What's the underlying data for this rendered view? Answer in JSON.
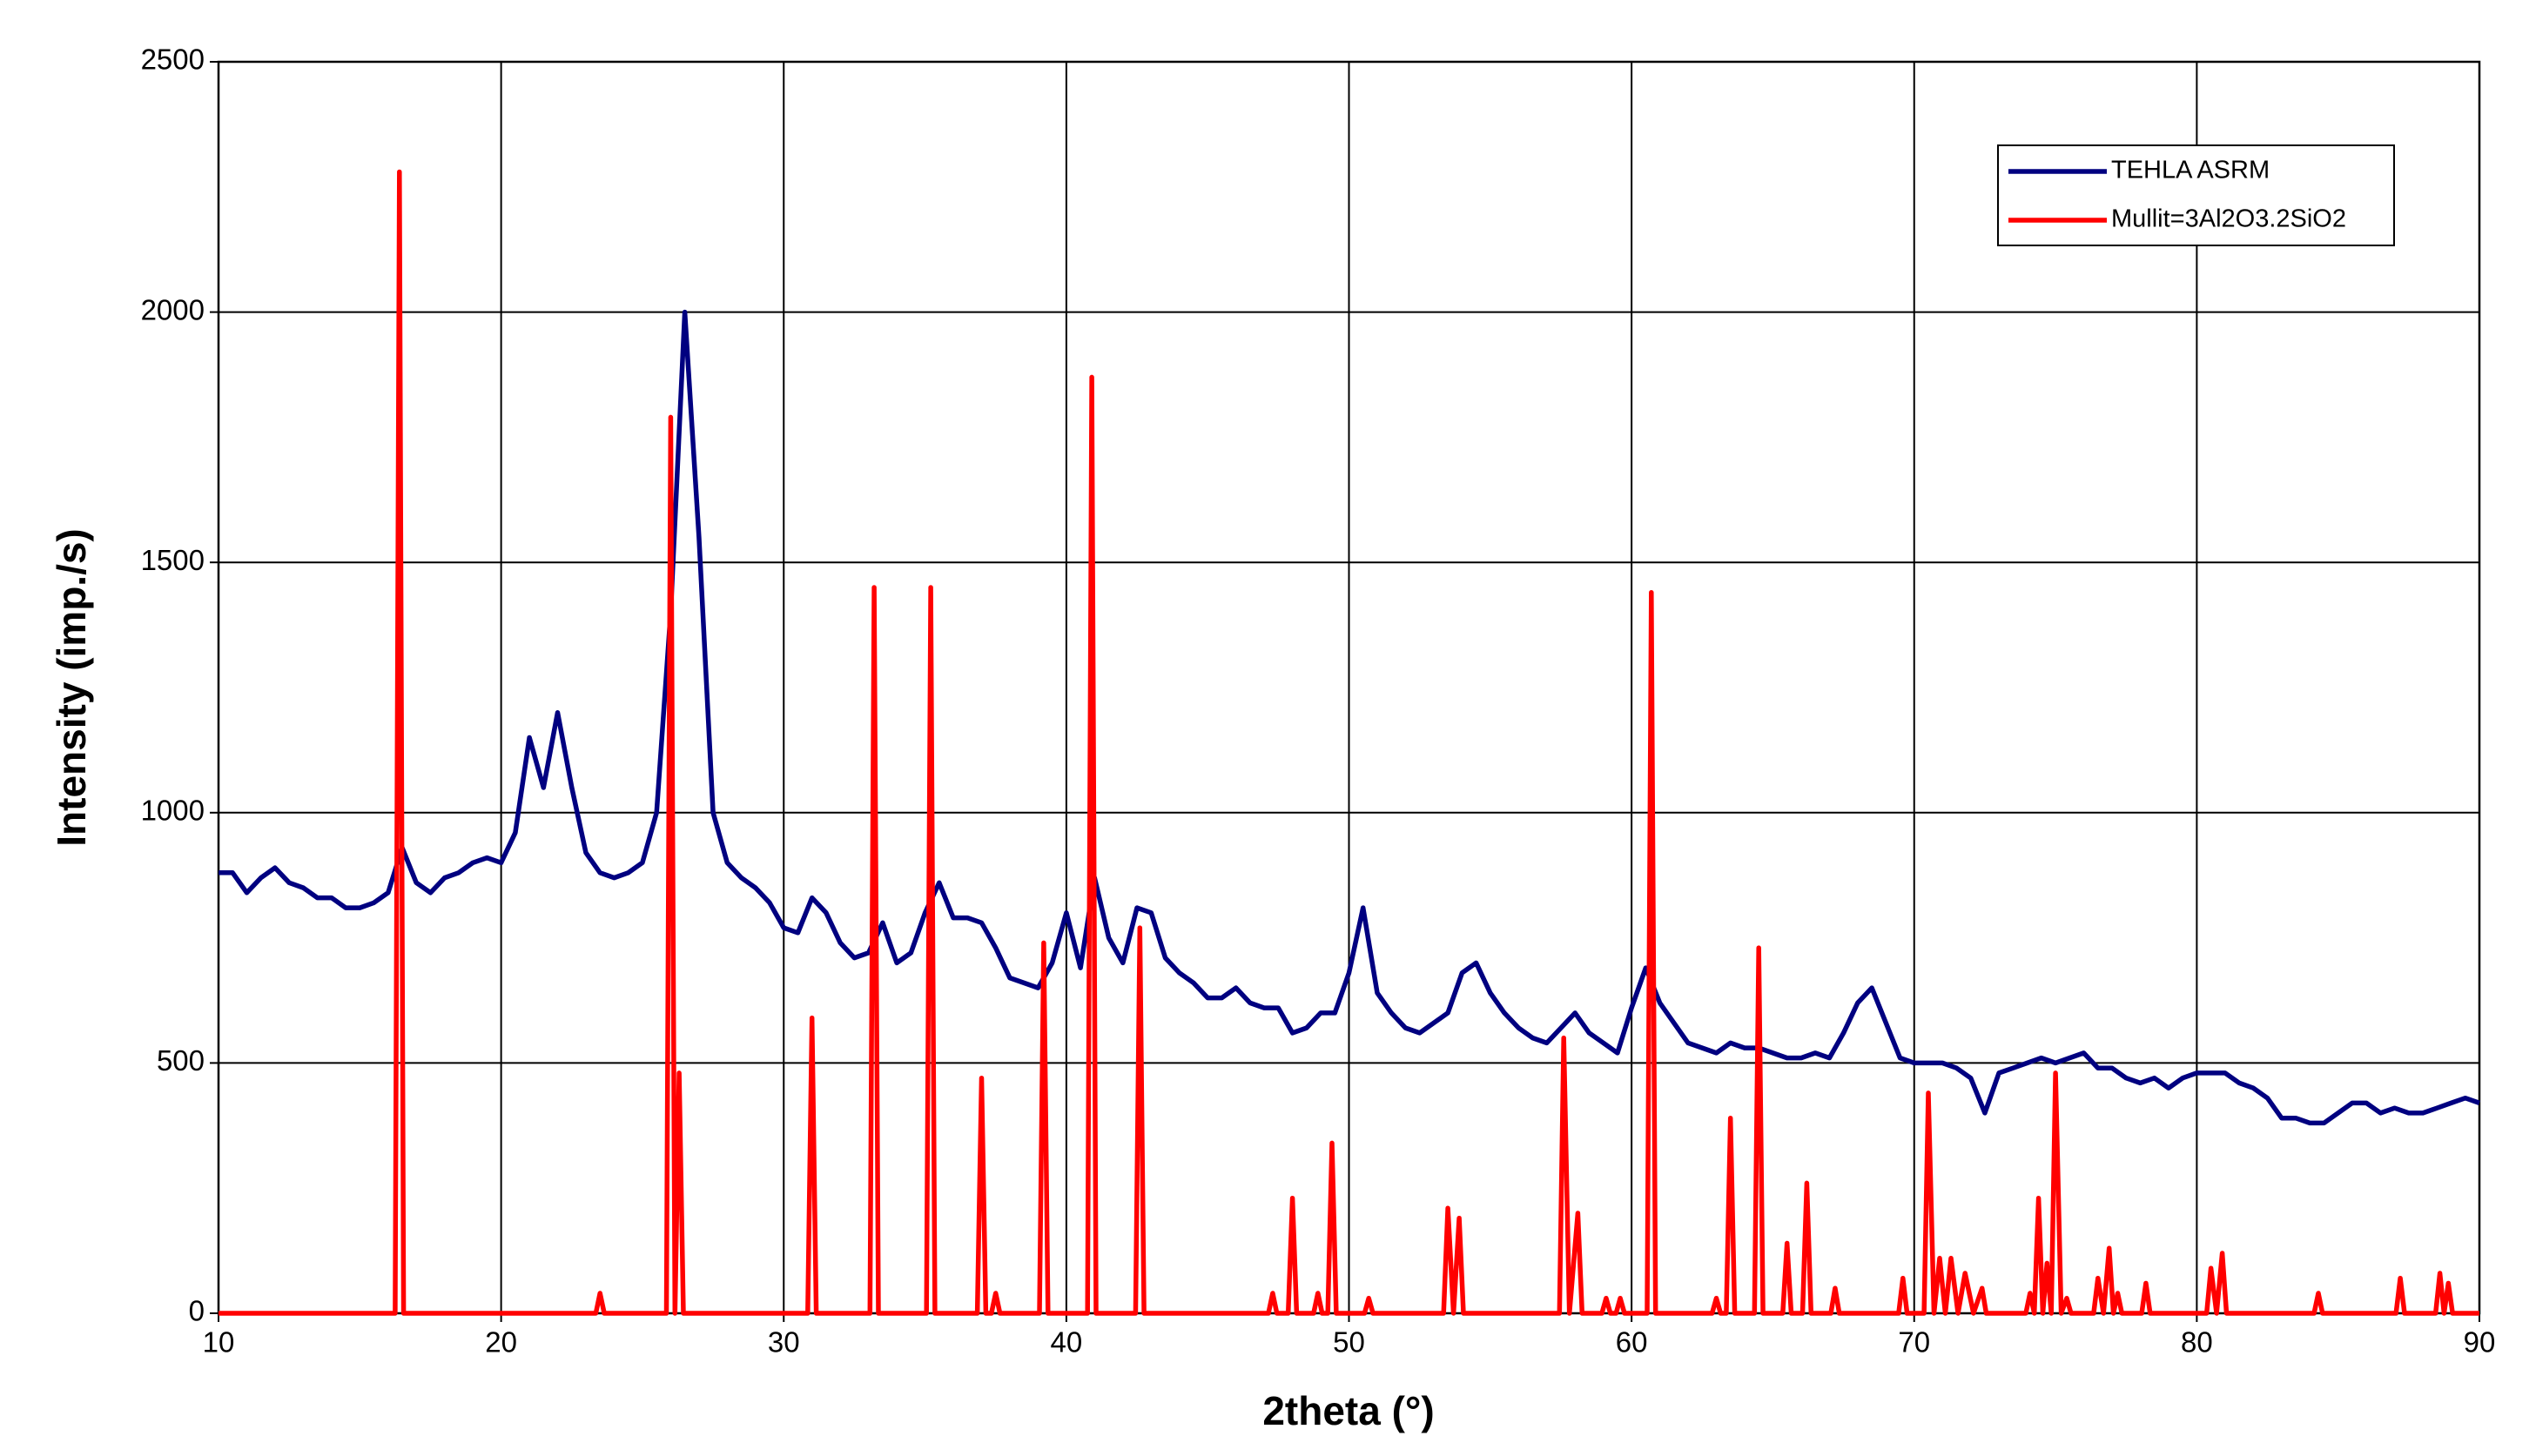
{
  "chart_data": {
    "type": "line",
    "xlabel": "2theta (°)",
    "ylabel": "Intensity (imp./s)",
    "xlim": [
      10,
      90
    ],
    "ylim": [
      0,
      2500
    ],
    "xticks": [
      10,
      20,
      30,
      40,
      50,
      60,
      70,
      80,
      90
    ],
    "yticks": [
      0,
      500,
      1000,
      1500,
      2000,
      2500
    ],
    "grid": true,
    "legend": "top-right",
    "series": [
      {
        "name": "TEHLA ASRM",
        "color": "#000080",
        "x": [
          10,
          10.5,
          11,
          11.5,
          12,
          12.5,
          13,
          13.5,
          14,
          14.5,
          15,
          15.5,
          16,
          16.5,
          17,
          17.5,
          18,
          18.5,
          19,
          19.5,
          20,
          20.5,
          21,
          21.5,
          22,
          22.5,
          23,
          23.5,
          24,
          24.5,
          25,
          25.5,
          26,
          26.5,
          27,
          27.5,
          28,
          28.5,
          29,
          29.5,
          30,
          30.5,
          31,
          31.5,
          32,
          32.5,
          33,
          33.5,
          34,
          34.5,
          35,
          35.5,
          36,
          36.5,
          37,
          37.5,
          38,
          38.5,
          39,
          39.5,
          40,
          40.5,
          41,
          41.5,
          42,
          42.5,
          43,
          43.5,
          44,
          44.5,
          45,
          45.5,
          46,
          46.5,
          47,
          47.5,
          48,
          48.5,
          49,
          49.5,
          50,
          50.5,
          51,
          51.5,
          52,
          52.5,
          53,
          53.5,
          54,
          54.5,
          55,
          55.5,
          56,
          56.5,
          57,
          57.5,
          58,
          58.5,
          59,
          59.5,
          60,
          60.5,
          61,
          61.5,
          62,
          62.5,
          63,
          63.5,
          64,
          64.5,
          65,
          65.5,
          66,
          66.5,
          67,
          67.5,
          68,
          68.5,
          69,
          69.5,
          70,
          70.5,
          71,
          71.5,
          72,
          72.5,
          73,
          73.5,
          74,
          74.5,
          75,
          75.5,
          76,
          76.5,
          77,
          77.5,
          78,
          78.5,
          79,
          79.5,
          80,
          80.5,
          81,
          81.5,
          82,
          82.5,
          83,
          83.5,
          84,
          84.5,
          85,
          85.5,
          86,
          86.5,
          87,
          87.5,
          88,
          88.5,
          89,
          89.5,
          90
        ],
        "values": [
          880,
          880,
          840,
          870,
          890,
          860,
          850,
          830,
          830,
          810,
          810,
          820,
          840,
          930,
          860,
          840,
          870,
          880,
          900,
          910,
          900,
          960,
          1150,
          1050,
          1200,
          1050,
          920,
          880,
          870,
          880,
          900,
          1000,
          1400,
          2000,
          1550,
          1000,
          900,
          870,
          850,
          820,
          770,
          760,
          830,
          800,
          740,
          710,
          720,
          780,
          700,
          720,
          800,
          860,
          790,
          790,
          780,
          730,
          670,
          660,
          650,
          700,
          800,
          690,
          870,
          750,
          700,
          810,
          800,
          710,
          680,
          660,
          630,
          630,
          650,
          620,
          610,
          610,
          560,
          570,
          600,
          600,
          680,
          810,
          640,
          600,
          570,
          560,
          580,
          600,
          680,
          700,
          640,
          600,
          570,
          550,
          540,
          570,
          600,
          560,
          540,
          520,
          610,
          690,
          620,
          580,
          540,
          530,
          520,
          540,
          530,
          530,
          520,
          510,
          510,
          520,
          510,
          560,
          620,
          650,
          580,
          510,
          500,
          500,
          500,
          490,
          470,
          400,
          480,
          490,
          500,
          510,
          500,
          510,
          520,
          490,
          490,
          470,
          460,
          470,
          450,
          470,
          480,
          480,
          480,
          460,
          450,
          430,
          390,
          390,
          380,
          380,
          400,
          420,
          420,
          400,
          410,
          400,
          400,
          410,
          420,
          430,
          420
        ]
      },
      {
        "name": "Mullit=3Al2O3.2SiO2",
        "color": "#ff0000",
        "x": [
          10,
          16.25,
          16.4,
          16.55,
          23.35,
          23.5,
          23.65,
          25.85,
          26.0,
          26.15,
          26.3,
          26.45,
          30.85,
          31.0,
          31.15,
          33.05,
          33.2,
          33.35,
          35.05,
          35.2,
          35.35,
          36.85,
          37.0,
          37.15,
          37.35,
          37.5,
          37.65,
          39.05,
          39.2,
          39.35,
          40.75,
          40.9,
          41.05,
          42.45,
          42.6,
          42.75,
          47.15,
          47.3,
          47.45,
          47.85,
          48.0,
          48.15,
          48.75,
          48.9,
          49.05,
          49.25,
          49.4,
          49.55,
          50.55,
          50.7,
          50.85,
          53.35,
          53.5,
          53.7,
          53.9,
          54.05,
          57.45,
          57.6,
          57.8,
          58.1,
          58.25,
          58.95,
          59.1,
          59.25,
          59.45,
          59.6,
          59.75,
          60.55,
          60.7,
          60.85,
          62.85,
          63.0,
          63.15,
          63.35,
          63.5,
          63.65,
          64.35,
          64.5,
          64.65,
          65.35,
          65.5,
          65.65,
          66.05,
          66.2,
          66.35,
          67.05,
          67.2,
          67.35,
          69.45,
          69.6,
          69.75,
          70.35,
          70.5,
          70.7,
          70.9,
          71.1,
          71.3,
          71.55,
          71.8,
          72.1,
          72.4,
          72.55,
          73.95,
          74.1,
          74.25,
          74.4,
          74.55,
          74.7,
          74.85,
          75.0,
          75.2,
          75.4,
          75.55,
          76.35,
          76.5,
          76.7,
          76.9,
          77.05,
          77.2,
          77.35,
          78.05,
          78.2,
          78.35,
          80.35,
          80.5,
          80.7,
          80.9,
          81.05,
          84.15,
          84.3,
          84.45,
          87.05,
          87.2,
          87.35,
          88.45,
          88.6,
          88.75,
          88.9,
          89.05,
          90
        ],
        "values": [
          0,
          0,
          2280,
          0,
          0,
          40,
          0,
          0,
          1790,
          0,
          480,
          0,
          0,
          590,
          0,
          0,
          1450,
          0,
          0,
          1450,
          0,
          0,
          470,
          0,
          0,
          40,
          0,
          0,
          740,
          0,
          0,
          1870,
          0,
          0,
          770,
          0,
          0,
          40,
          0,
          0,
          230,
          0,
          0,
          40,
          0,
          0,
          340,
          0,
          0,
          30,
          0,
          0,
          210,
          0,
          190,
          0,
          0,
          550,
          0,
          200,
          0,
          0,
          30,
          0,
          0,
          30,
          0,
          0,
          1440,
          0,
          0,
          30,
          0,
          0,
          390,
          0,
          0,
          730,
          0,
          0,
          140,
          0,
          0,
          260,
          0,
          0,
          50,
          0,
          0,
          70,
          0,
          0,
          440,
          0,
          110,
          0,
          110,
          0,
          80,
          0,
          50,
          0,
          0,
          40,
          0,
          230,
          0,
          100,
          0,
          480,
          0,
          30,
          0,
          0,
          70,
          0,
          130,
          0,
          40,
          0,
          0,
          60,
          0,
          0,
          90,
          0,
          120,
          0,
          0,
          40,
          0,
          0,
          70,
          0,
          0,
          80,
          0,
          60,
          0,
          0
        ]
      }
    ]
  }
}
